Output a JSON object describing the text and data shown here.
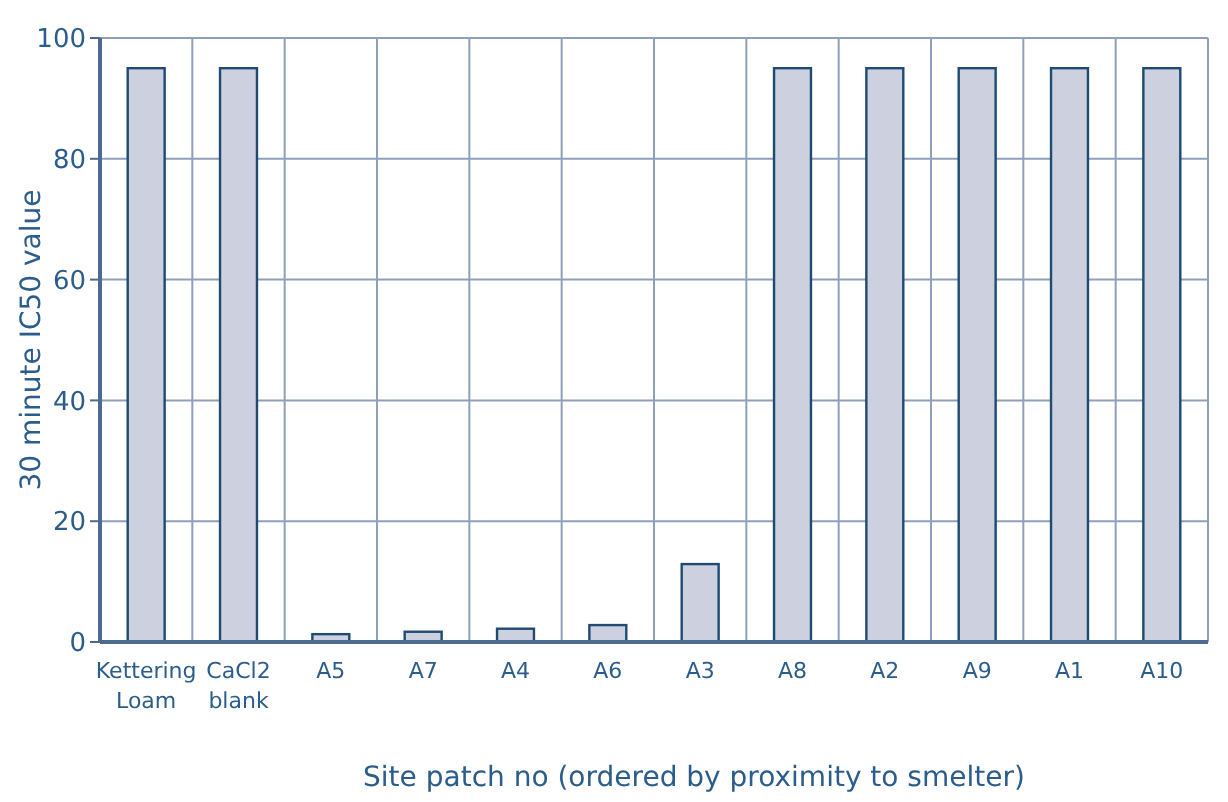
{
  "chart_data": {
    "type": "bar",
    "xlabel": "Site patch no (ordered by proximity to smelter)",
    "ylabel": "30 minute IC50 value",
    "categories": [
      "Kettering Loam",
      "CaCl2 blank",
      "A5",
      "A7",
      "A4",
      "A6",
      "A3",
      "A8",
      "A2",
      "A9",
      "A1",
      "A10"
    ],
    "values": [
      95,
      95,
      1.3,
      1.7,
      2.2,
      2.8,
      12.9,
      95,
      95,
      95,
      95,
      95
    ],
    "color": "#cdd1df",
    "ylim": [
      0,
      100
    ],
    "yticks": [
      0,
      20,
      40,
      60,
      80,
      100
    ],
    "grid": true
  }
}
